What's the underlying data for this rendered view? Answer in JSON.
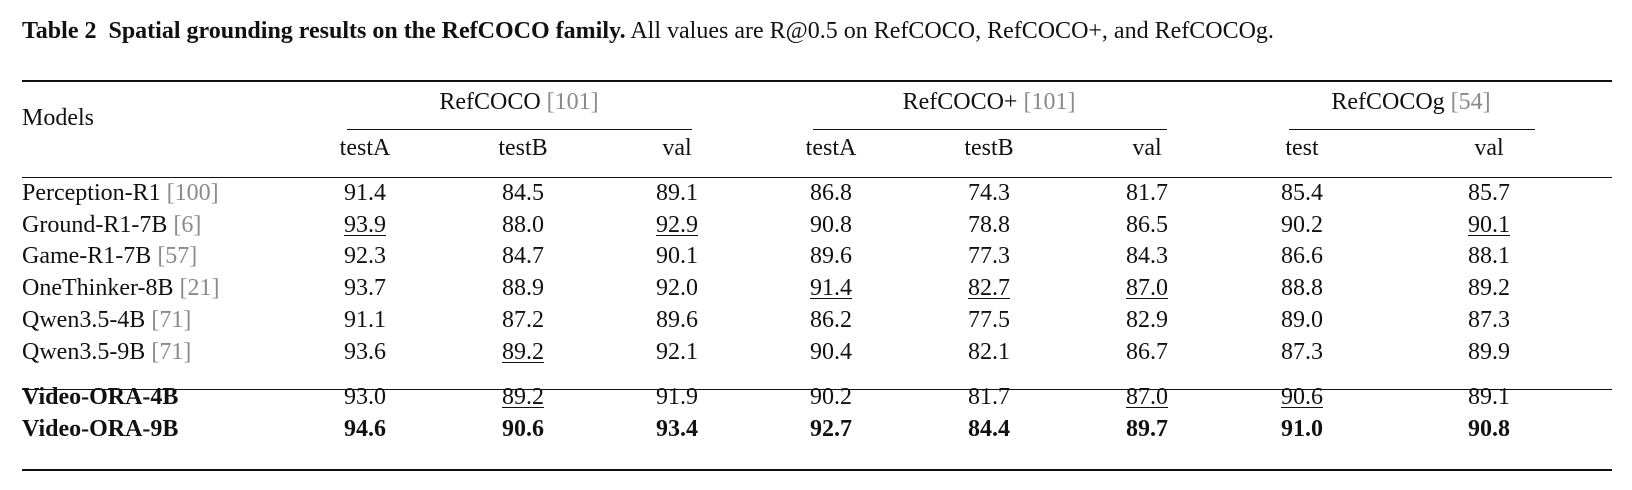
{
  "caption": {
    "label": "Table 2",
    "title": "Spatial grounding results on the RefCOCO family.",
    "description": "All values are R@0.5 on RefCOCO, RefCOCO+, and RefCOCOg."
  },
  "header": {
    "models_label": "Models",
    "groups": [
      {
        "name": "RefCOCO",
        "ref": "[101]",
        "splits": [
          "testA",
          "testB",
          "val"
        ]
      },
      {
        "name": "RefCOCO+",
        "ref": "[101]",
        "splits": [
          "testA",
          "testB",
          "val"
        ]
      },
      {
        "name": "RefCOCOg",
        "ref": "[54]",
        "splits": [
          "test",
          "val"
        ]
      }
    ]
  },
  "baseline_rows": [
    {
      "model": "Perception-R1",
      "ref": "[100]",
      "values": [
        "91.4",
        "84.5",
        "89.1",
        "86.8",
        "74.3",
        "81.7",
        "85.4",
        "85.7"
      ],
      "underline": []
    },
    {
      "model": "Ground-R1-7B",
      "ref": "[6]",
      "values": [
        "93.9",
        "88.0",
        "92.9",
        "90.8",
        "78.8",
        "86.5",
        "90.2",
        "90.1"
      ],
      "underline": [
        0,
        2,
        7
      ]
    },
    {
      "model": "Game-R1-7B",
      "ref": "[57]",
      "values": [
        "92.3",
        "84.7",
        "90.1",
        "89.6",
        "77.3",
        "84.3",
        "86.6",
        "88.1"
      ],
      "underline": []
    },
    {
      "model": "OneThinker-8B",
      "ref": "[21]",
      "values": [
        "93.7",
        "88.9",
        "92.0",
        "91.4",
        "82.7",
        "87.0",
        "88.8",
        "89.2"
      ],
      "underline": [
        3,
        4,
        5
      ]
    },
    {
      "model": "Qwen3.5-4B",
      "ref": "[71]",
      "values": [
        "91.1",
        "87.2",
        "89.6",
        "86.2",
        "77.5",
        "82.9",
        "89.0",
        "87.3"
      ],
      "underline": []
    },
    {
      "model": "Qwen3.5-9B",
      "ref": "[71]",
      "values": [
        "93.6",
        "89.2",
        "92.1",
        "90.4",
        "82.1",
        "86.7",
        "87.3",
        "89.9"
      ],
      "underline": [
        1
      ]
    }
  ],
  "ours_rows": [
    {
      "model": "Video-ORA-4B",
      "values": [
        "93.0",
        "89.2",
        "91.9",
        "90.2",
        "81.7",
        "87.0",
        "90.6",
        "89.1"
      ],
      "underline": [
        1,
        5,
        6
      ],
      "bold": []
    },
    {
      "model": "Video-ORA-9B",
      "values": [
        "94.6",
        "90.6",
        "93.4",
        "92.7",
        "84.4",
        "89.7",
        "91.0",
        "90.8"
      ],
      "underline": [],
      "bold": [
        0,
        1,
        2,
        3,
        4,
        5,
        6,
        7
      ]
    }
  ]
}
